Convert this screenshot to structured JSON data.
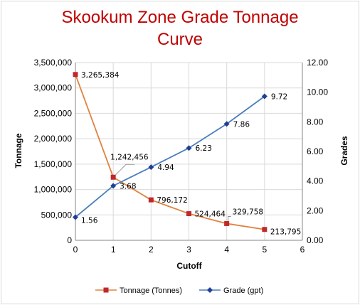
{
  "chart_data": {
    "type": "line",
    "title_lines": [
      "Skookum Zone Grade Tonnage",
      "Curve"
    ],
    "xlabel": "Cutoff",
    "ylabel": "Tonnage",
    "y2label": "Grades",
    "x": [
      0,
      1,
      2,
      3,
      4,
      5
    ],
    "x_ticks": [
      "0",
      "1",
      "2",
      "3",
      "4",
      "5",
      "6"
    ],
    "xlim": [
      0,
      6
    ],
    "ylim": [
      0,
      3500000
    ],
    "y_ticks": [
      "0",
      "500,000",
      "1,000,000",
      "1,500,000",
      "2,000,000",
      "2,500,000",
      "3,000,000",
      "3,500,000"
    ],
    "y2lim": [
      0,
      12
    ],
    "y2_ticks": [
      "0.00",
      "2.00",
      "4.00",
      "6.00",
      "8.00",
      "10.00",
      "12.00"
    ],
    "grid": true,
    "legend_position": "bottom",
    "series": [
      {
        "name": "Tonnage (Tonnes)",
        "axis": "left",
        "color": "#e0823f",
        "marker_color": "#c0282d",
        "marker": "square",
        "values": [
          3265384,
          1242456,
          796172,
          524464,
          329758,
          213795
        ],
        "labels": [
          "3,265,384",
          "1,242,456",
          "796,172",
          "524,464",
          "329,758",
          "213,795"
        ]
      },
      {
        "name": "Grade (gpt)",
        "axis": "right",
        "color": "#4a7ebb",
        "marker_color": "#1f3f94",
        "marker": "diamond",
        "values": [
          1.56,
          3.68,
          4.94,
          6.23,
          7.86,
          9.72
        ],
        "labels": [
          "1.56",
          "3.68",
          "4.94",
          "6.23",
          "7.86",
          "9.72"
        ]
      }
    ],
    "title_color": "#c00000"
  }
}
